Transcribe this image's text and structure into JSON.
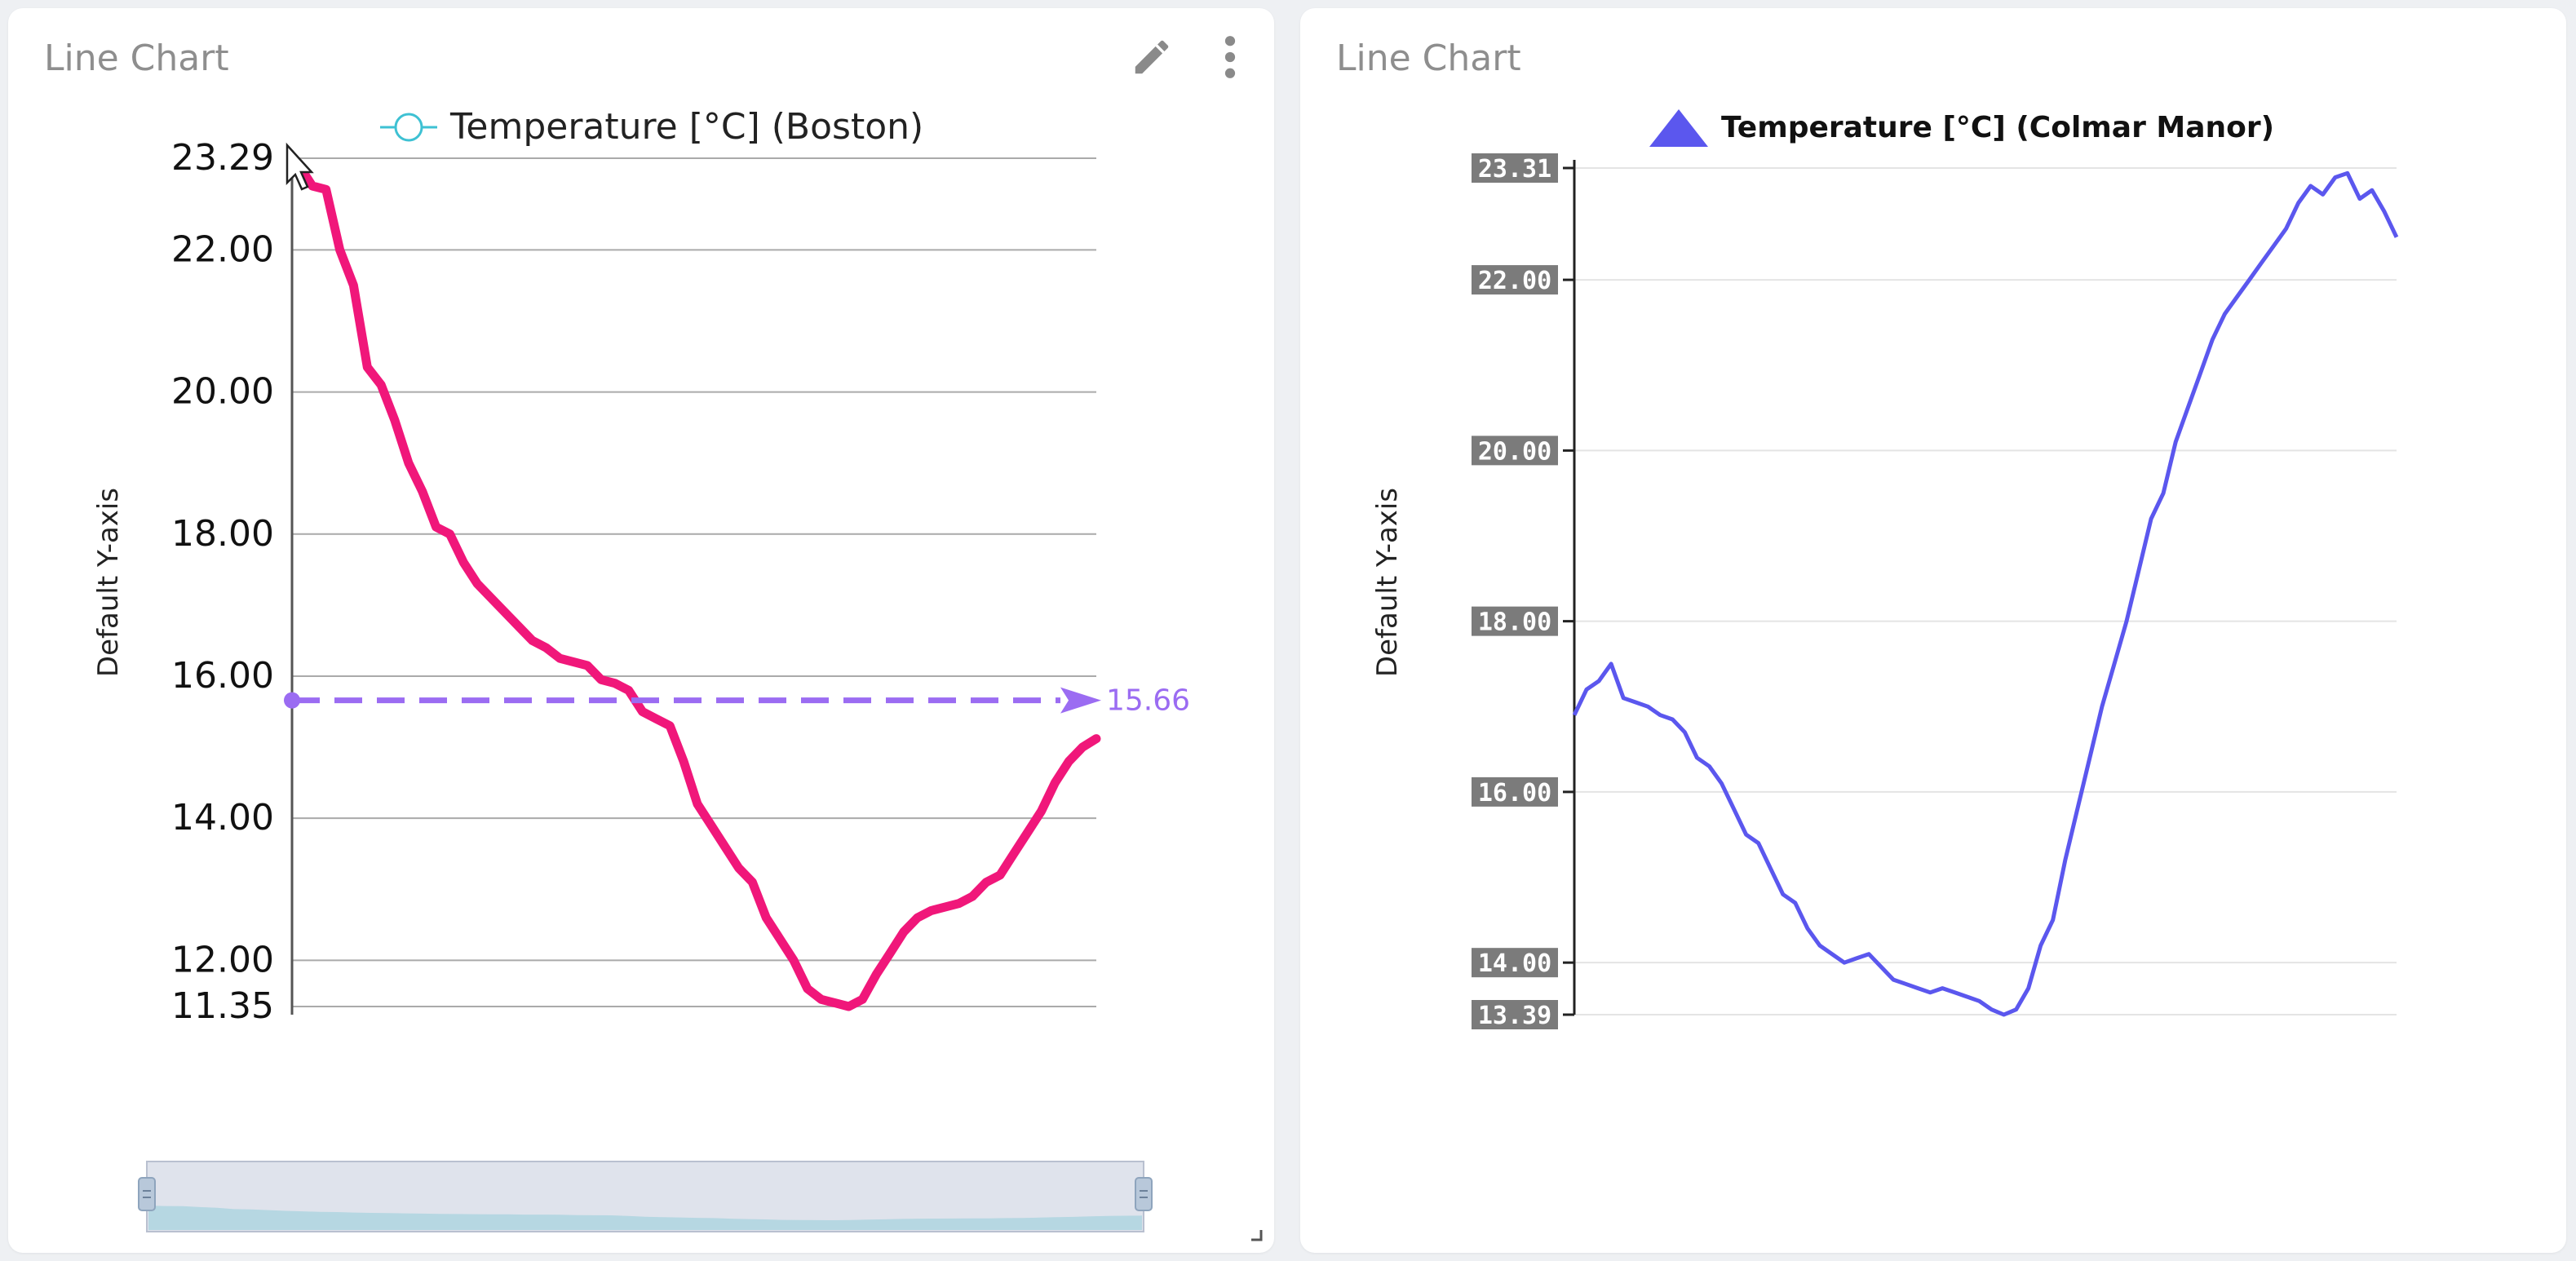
{
  "panels": [
    {
      "title": "Line Chart",
      "legend": "Temperature [°C] (Boston)",
      "ylabel": "Default Y-axis",
      "marker_value": "15.66"
    },
    {
      "title": "Line Chart",
      "legend": "Temperature [°C] (Colmar Manor)",
      "ylabel": "Default Y-axis"
    }
  ],
  "colors": {
    "boston_line": "#f0177a",
    "colmar_line": "#5b57ee",
    "marker": "#9b6cf2",
    "legend_circle": "#3ec1d3"
  },
  "chart_data": [
    {
      "type": "line",
      "title": "",
      "xlabel": "",
      "ylabel": "Default Y-axis",
      "ylim": [
        11.35,
        23.29
      ],
      "y_ticks": [
        "23.29",
        "22.00",
        "20.00",
        "18.00",
        "16.00",
        "14.00",
        "12.00",
        "11.35"
      ],
      "grid": true,
      "legend_position": "top-center",
      "reference_line": {
        "value": 15.66,
        "label": "15.66"
      },
      "series": [
        {
          "name": "Temperature [°C] (Boston)",
          "values": [
            23.2,
            22.9,
            22.85,
            22.0,
            21.5,
            20.35,
            20.1,
            19.6,
            19.0,
            18.6,
            18.1,
            18.0,
            17.6,
            17.3,
            17.1,
            16.9,
            16.7,
            16.5,
            16.4,
            16.25,
            16.2,
            16.15,
            15.95,
            15.9,
            15.8,
            15.5,
            15.4,
            15.3,
            14.8,
            14.2,
            13.9,
            13.6,
            13.3,
            13.1,
            12.6,
            12.3,
            12.0,
            11.6,
            11.45,
            11.4,
            11.35,
            11.45,
            11.8,
            12.1,
            12.4,
            12.6,
            12.7,
            12.75,
            12.8,
            12.9,
            13.1,
            13.2,
            13.5,
            13.8,
            14.1,
            14.5,
            14.8,
            15.0,
            15.12
          ]
        }
      ]
    },
    {
      "type": "line",
      "title": "",
      "xlabel": "",
      "ylabel": "Default Y-axis",
      "ylim": [
        13.39,
        23.31
      ],
      "y_ticks": [
        "23.31",
        "22.00",
        "20.00",
        "18.00",
        "16.00",
        "14.00",
        "13.39"
      ],
      "grid": true,
      "legend_position": "top-center",
      "series": [
        {
          "name": "Temperature [°C] (Colmar Manor)",
          "values": [
            16.9,
            17.2,
            17.3,
            17.5,
            17.1,
            17.05,
            17.0,
            16.9,
            16.85,
            16.7,
            16.4,
            16.3,
            16.1,
            15.8,
            15.5,
            15.4,
            15.1,
            14.8,
            14.7,
            14.4,
            14.2,
            14.1,
            14.0,
            14.05,
            14.1,
            13.95,
            13.8,
            13.75,
            13.7,
            13.65,
            13.7,
            13.65,
            13.6,
            13.55,
            13.45,
            13.39,
            13.45,
            13.7,
            14.2,
            14.5,
            15.2,
            15.8,
            16.4,
            17.0,
            17.5,
            18.0,
            18.6,
            19.2,
            19.5,
            20.1,
            20.5,
            20.9,
            21.3,
            21.6,
            21.8,
            22.0,
            22.2,
            22.4,
            22.6,
            22.9,
            23.1,
            23.0,
            23.2,
            23.25,
            22.95,
            23.05,
            22.8,
            22.5
          ]
        }
      ]
    }
  ]
}
